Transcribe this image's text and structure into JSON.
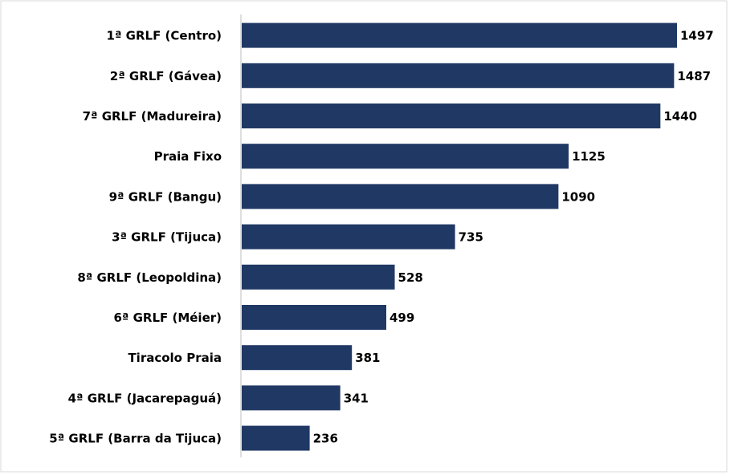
{
  "chart_data": {
    "type": "hbar",
    "categories": [
      "1ª GRLF (Centro)",
      "2ª GRLF (Gávea)",
      "7ª GRLF (Madureira)",
      "Praia Fixo",
      "9ª GRLF (Bangu)",
      "3ª GRLF (Tijuca)",
      "8ª GRLF (Leopoldina)",
      "6ª GRLF (Méier)",
      "Tiracolo Praia",
      "4ª GRLF (Jacarepaguá)",
      "5ª GRLF (Barra da Tijuca)"
    ],
    "values": [
      1497,
      1487,
      1440,
      1125,
      1090,
      735,
      528,
      499,
      381,
      341,
      236
    ],
    "color": "#203864"
  }
}
